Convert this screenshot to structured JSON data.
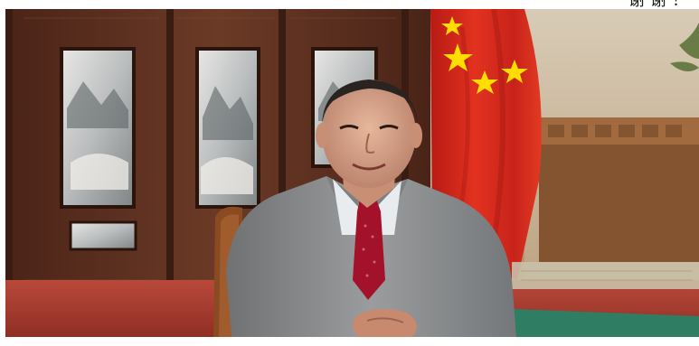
{
  "photo": {
    "subject": "speaker",
    "colors": {
      "flag_red": "#d7261e",
      "flag_star": "#ffde00",
      "suit_grey": "#8a8c8e",
      "tie_red": "#a3122a",
      "screen_wood": "#5a2f1f",
      "carpet_red": "#a63a2c",
      "desk_green": "#2f7d63"
    }
  },
  "caption": {
    "text": "谢谢！"
  }
}
